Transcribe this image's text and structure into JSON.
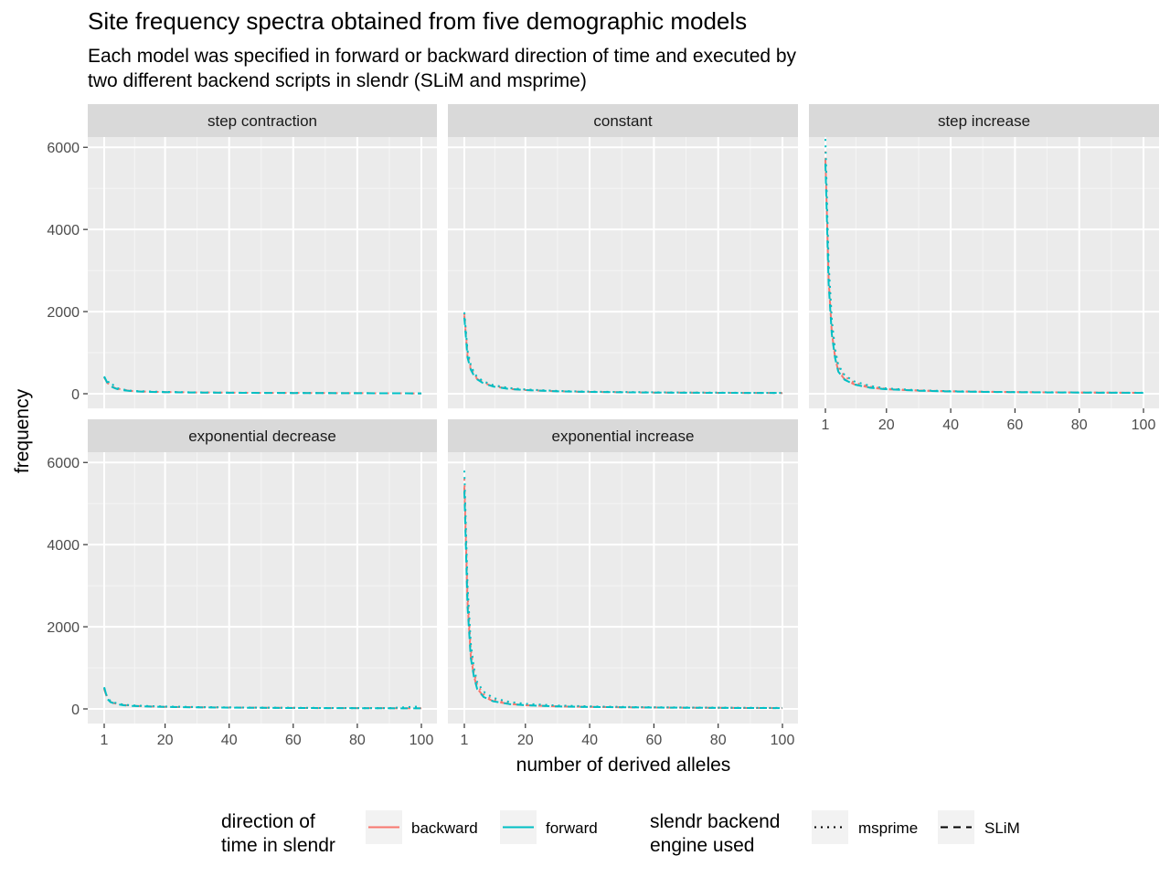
{
  "title": "Site frequency spectra obtained from five demographic models",
  "subtitle_lines": [
    "Each model was specified in forward or backward direction of time and executed by",
    "two different backend scripts in slendr (SLiM and msprime)"
  ],
  "colors": {
    "backward": "#F8766D",
    "forward": "#00BFC4"
  },
  "chart_data": {
    "type": "line",
    "title": "Site frequency spectra obtained from five demographic models",
    "xlabel": "number of derived alleles",
    "ylabel": "frequency",
    "xlim": [
      1,
      100
    ],
    "ylim": [
      0,
      6000
    ],
    "x_ticks": [
      1,
      20,
      40,
      60,
      80,
      100
    ],
    "y_ticks": [
      0,
      2000,
      4000,
      6000
    ],
    "grid": true,
    "legend_position": "bottom",
    "legend": {
      "color": {
        "title_lines": [
          "direction of",
          "time in slendr"
        ],
        "entries": [
          "backward",
          "forward"
        ]
      },
      "linetype": {
        "title_lines": [
          "slendr backend",
          "engine used"
        ],
        "entries": [
          "msprime",
          "SLiM"
        ]
      }
    },
    "panels": [
      {
        "name": "step contraction",
        "x": [
          1,
          2,
          3,
          4,
          5,
          7,
          10,
          15,
          20,
          30,
          40,
          50,
          60,
          70,
          80,
          90,
          100
        ],
        "series": [
          {
            "direction": "backward",
            "engine": "SLiM",
            "values": [
              400,
              260,
              190,
              150,
              120,
              90,
              60,
              45,
              40,
              30,
              25,
              20,
              18,
              15,
              14,
              12,
              10
            ]
          },
          {
            "direction": "backward",
            "engine": "msprime",
            "values": [
              400,
              270,
              200,
              160,
              130,
              95,
              65,
              50,
              42,
              32,
              26,
              21,
              19,
              16,
              14,
              12,
              10
            ]
          },
          {
            "direction": "forward",
            "engine": "SLiM",
            "values": [
              420,
              260,
              185,
              145,
              115,
              85,
              60,
              45,
              38,
              30,
              25,
              20,
              18,
              15,
              13,
              12,
              10
            ]
          },
          {
            "direction": "forward",
            "engine": "msprime",
            "values": [
              410,
              280,
              300,
              190,
              140,
              100,
              70,
              55,
              45,
              34,
              27,
              22,
              19,
              16,
              14,
              12,
              10
            ]
          }
        ]
      },
      {
        "name": "constant",
        "x": [
          1,
          2,
          3,
          4,
          5,
          7,
          10,
          15,
          20,
          30,
          40,
          50,
          60,
          70,
          80,
          90,
          100
        ],
        "series": [
          {
            "direction": "backward",
            "engine": "SLiM",
            "values": [
              1900,
              900,
              600,
              450,
              360,
              260,
              180,
              120,
              90,
              60,
              45,
              36,
              30,
              26,
              22,
              20,
              18
            ]
          },
          {
            "direction": "backward",
            "engine": "msprime",
            "values": [
              1950,
              1000,
              650,
              480,
              380,
              280,
              200,
              130,
              100,
              65,
              50,
              40,
              33,
              28,
              24,
              21,
              19
            ]
          },
          {
            "direction": "forward",
            "engine": "SLiM",
            "values": [
              1850,
              880,
              590,
              440,
              350,
              250,
              175,
              115,
              88,
              58,
              44,
              35,
              29,
              25,
              22,
              19,
              17
            ]
          },
          {
            "direction": "forward",
            "engine": "msprime",
            "values": [
              1980,
              1050,
              700,
              520,
              410,
              300,
              210,
              140,
              105,
              70,
              52,
              42,
              35,
              30,
              26,
              23,
              20
            ]
          }
        ]
      },
      {
        "name": "step increase",
        "x": [
          1,
          2,
          3,
          4,
          5,
          7,
          10,
          15,
          20,
          30,
          40,
          50,
          60,
          70,
          80,
          90,
          100
        ],
        "series": [
          {
            "direction": "backward",
            "engine": "SLiM",
            "values": [
              5700,
              2800,
              1500,
              900,
              550,
              350,
              230,
              150,
              110,
              75,
              57,
              46,
              38,
              33,
              29,
              25,
              22
            ]
          },
          {
            "direction": "backward",
            "engine": "msprime",
            "values": [
              5900,
              3000,
              1700,
              1000,
              650,
              420,
              270,
              170,
              120,
              80,
              60,
              48,
              40,
              34,
              30,
              26,
              23
            ]
          },
          {
            "direction": "forward",
            "engine": "SLiM",
            "values": [
              5600,
              2700,
              1450,
              880,
              540,
              340,
              225,
              145,
              108,
              74,
              56,
              45,
              37,
              32,
              28,
              25,
              22
            ]
          },
          {
            "direction": "forward",
            "engine": "msprime",
            "values": [
              6200,
              3200,
              1800,
              1100,
              700,
              450,
              300,
              190,
              130,
              85,
              63,
              50,
              41,
              35,
              31,
              27,
              24
            ]
          }
        ]
      },
      {
        "name": "exponential decrease",
        "x": [
          1,
          2,
          3,
          4,
          5,
          7,
          10,
          15,
          20,
          30,
          40,
          50,
          60,
          70,
          80,
          90,
          100
        ],
        "series": [
          {
            "direction": "backward",
            "engine": "SLiM",
            "values": [
              480,
              250,
              170,
              140,
              120,
              95,
              75,
              60,
              50,
              40,
              33,
              28,
              24,
              21,
              19,
              17,
              15
            ]
          },
          {
            "direction": "backward",
            "engine": "msprime",
            "values": [
              500,
              260,
              180,
              150,
              130,
              100,
              80,
              65,
              55,
              42,
              35,
              30,
              26,
              22,
              20,
              18,
              16
            ]
          },
          {
            "direction": "forward",
            "engine": "SLiM",
            "values": [
              530,
              240,
              165,
              135,
              115,
              90,
              72,
              58,
              48,
              38,
              32,
              27,
              23,
              20,
              18,
              16,
              14
            ]
          },
          {
            "direction": "forward",
            "engine": "msprime",
            "values": [
              510,
              270,
              190,
              160,
              135,
              105,
              85,
              68,
              57,
              44,
              36,
              31,
              27,
              23,
              21,
              19,
              60
            ]
          }
        ]
      },
      {
        "name": "exponential increase",
        "x": [
          1,
          2,
          3,
          4,
          5,
          7,
          10,
          15,
          20,
          30,
          40,
          50,
          60,
          70,
          80,
          90,
          100
        ],
        "series": [
          {
            "direction": "backward",
            "engine": "SLiM",
            "values": [
              5400,
              2600,
              1300,
              800,
              500,
              300,
              190,
              120,
              90,
              62,
              48,
              40,
              34,
              29,
              26,
              23,
              20
            ]
          },
          {
            "direction": "backward",
            "engine": "msprime",
            "values": [
              5600,
              2800,
              1450,
              900,
              580,
              360,
              230,
              150,
              110,
              75,
              57,
              46,
              38,
              33,
              29,
              25,
              22
            ]
          },
          {
            "direction": "forward",
            "engine": "SLiM",
            "values": [
              5300,
              2500,
              1250,
              780,
              480,
              290,
              185,
              118,
              88,
              60,
              47,
              39,
              33,
              28,
              25,
              22,
              20
            ]
          },
          {
            "direction": "forward",
            "engine": "msprime",
            "values": [
              5800,
              3000,
              1600,
              1000,
              650,
              420,
              270,
              170,
              125,
              82,
              62,
              50,
              41,
              35,
              31,
              27,
              24
            ]
          }
        ]
      }
    ]
  }
}
